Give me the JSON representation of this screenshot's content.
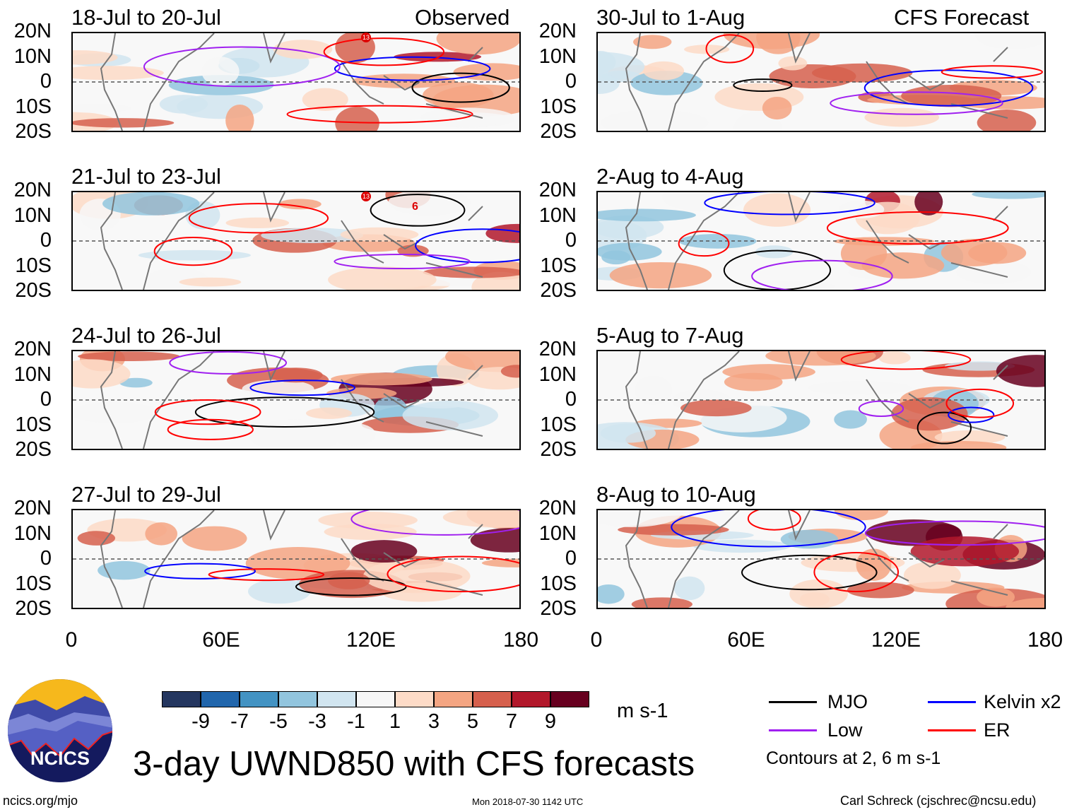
{
  "left_header": "Observed",
  "right_header": "CFS Forecast",
  "panels_left": [
    {
      "title": "18-Jul to 20-Jul"
    },
    {
      "title": "21-Jul to 23-Jul"
    },
    {
      "title": "24-Jul to 26-Jul"
    },
    {
      "title": "27-Jul to 29-Jul"
    }
  ],
  "panels_right": [
    {
      "title": "30-Jul to 1-Aug"
    },
    {
      "title": "2-Aug to 4-Aug"
    },
    {
      "title": "5-Aug to 7-Aug"
    },
    {
      "title": "8-Aug to 10-Aug"
    }
  ],
  "lat_labels": [
    "20N",
    "10N",
    "0",
    "10S",
    "20S"
  ],
  "lon_labels": [
    "0",
    "60E",
    "120E",
    "180"
  ],
  "storm_labels": [
    "13",
    "6"
  ],
  "colorbar": {
    "labels": [
      "-9",
      "-7",
      "-5",
      "-3",
      "-1",
      "1",
      "3",
      "5",
      "7",
      "9"
    ],
    "colors": [
      "#24365f",
      "#2166ac",
      "#4393c3",
      "#92c5de",
      "#d1e5f0",
      "#f7f7f7",
      "#fddbc7",
      "#f4a582",
      "#d6604d",
      "#b2182b",
      "#67001f"
    ],
    "units": "m s-1"
  },
  "legend": {
    "items": [
      {
        "label": "MJO",
        "color": "#000000"
      },
      {
        "label": "Kelvin x2",
        "color": "#0000ff"
      },
      {
        "label": "Low",
        "color": "#a020f0"
      },
      {
        "label": "ER",
        "color": "#ff0000"
      }
    ],
    "note": "Contours at 2, 6 m s-1"
  },
  "main_title": "3-day UWND850 with CFS forecasts",
  "logo_text": "NCICS",
  "footer": {
    "url": "ncics.org/mjo",
    "timestamp": "Mon 2018-07-30 1142 UTC",
    "author": "Carl Schreck (cjschrec@ncsu.edu)"
  }
}
